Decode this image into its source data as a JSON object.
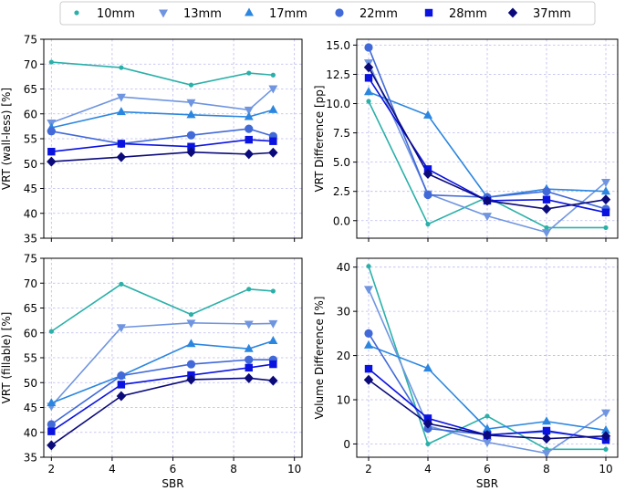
{
  "legend": {
    "placement": "top-center",
    "entries": [
      {
        "name": "10mm",
        "color": "#2ab0a8",
        "marker": "circle-small"
      },
      {
        "name": "13mm",
        "color": "#6f95e0",
        "marker": "triangle-down"
      },
      {
        "name": "17mm",
        "color": "#2b86e0",
        "marker": "triangle-up"
      },
      {
        "name": "22mm",
        "color": "#4169d8",
        "marker": "circle"
      },
      {
        "name": "28mm",
        "color": "#0a12e0",
        "marker": "square"
      },
      {
        "name": "37mm",
        "color": "#0b0a7a",
        "marker": "diamond"
      }
    ]
  },
  "chart_data": [
    {
      "type": "line",
      "title": "",
      "xlabel": "",
      "ylabel": "VRT (wall-less) [%]",
      "xlim": [
        1.75,
        10.25
      ],
      "ylim": [
        35,
        75
      ],
      "xticks": [
        2,
        4,
        6,
        8,
        10
      ],
      "yticks": [
        35,
        40,
        45,
        50,
        55,
        60,
        65,
        70,
        75
      ],
      "show_xticklabels": false,
      "grid": true,
      "series": [
        {
          "name": "10mm",
          "x": [
            2,
            4.3,
            6.6,
            8.5,
            9.3
          ],
          "y": [
            70.4,
            69.3,
            65.8,
            68.2,
            67.8
          ]
        },
        {
          "name": "13mm",
          "x": [
            2,
            4.3,
            6.6,
            8.5,
            9.3
          ],
          "y": [
            58.2,
            63.4,
            62.3,
            60.8,
            65.1
          ]
        },
        {
          "name": "17mm",
          "x": [
            2,
            4.3,
            6.6,
            8.5,
            9.3
          ],
          "y": [
            57.2,
            60.4,
            59.8,
            59.4,
            60.8
          ]
        },
        {
          "name": "22mm",
          "x": [
            2,
            4.3,
            6.6,
            8.5,
            9.3
          ],
          "y": [
            56.5,
            54.0,
            55.7,
            57.0,
            55.5
          ]
        },
        {
          "name": "28mm",
          "x": [
            2,
            4.3,
            6.6,
            8.5,
            9.3
          ],
          "y": [
            52.4,
            54.0,
            53.4,
            54.8,
            54.5
          ]
        },
        {
          "name": "37mm",
          "x": [
            2,
            4.3,
            6.6,
            8.5,
            9.3
          ],
          "y": [
            50.4,
            51.3,
            52.3,
            51.9,
            52.2
          ]
        }
      ]
    },
    {
      "type": "line",
      "title": "",
      "xlabel": "",
      "ylabel": "VRT Difference [pp]",
      "xlim": [
        1.6,
        10.4
      ],
      "ylim": [
        -1.5,
        15.5
      ],
      "xticks": [
        2,
        4,
        6,
        8,
        10
      ],
      "yticks": [
        0.0,
        2.5,
        5.0,
        7.5,
        10.0,
        12.5,
        15.0
      ],
      "ytick_labels": [
        "0.0",
        "2.5",
        "5.0",
        "7.5",
        "10.0",
        "12.5",
        "15.0"
      ],
      "show_xticklabels": false,
      "grid": true,
      "series": [
        {
          "name": "10mm",
          "x": [
            2,
            4,
            6,
            8,
            10
          ],
          "y": [
            10.2,
            -0.3,
            2.0,
            -0.6,
            -0.6
          ]
        },
        {
          "name": "13mm",
          "x": [
            2,
            4,
            6,
            8,
            10
          ],
          "y": [
            13.5,
            2.3,
            0.4,
            -1.0,
            3.3
          ]
        },
        {
          "name": "17mm",
          "x": [
            2,
            4,
            6,
            8,
            10
          ],
          "y": [
            11.0,
            9.0,
            2.0,
            2.7,
            2.5
          ]
        },
        {
          "name": "22mm",
          "x": [
            2,
            4,
            6,
            8,
            10
          ],
          "y": [
            14.8,
            2.2,
            2.0,
            2.5,
            1.0
          ]
        },
        {
          "name": "28mm",
          "x": [
            2,
            4,
            6,
            8,
            10
          ],
          "y": [
            12.2,
            4.4,
            1.7,
            1.8,
            0.7
          ]
        },
        {
          "name": "37mm",
          "x": [
            2,
            4,
            6,
            8,
            10
          ],
          "y": [
            13.1,
            4.0,
            1.7,
            1.0,
            1.8
          ]
        }
      ]
    },
    {
      "type": "line",
      "title": "",
      "xlabel": "SBR",
      "ylabel": "VRT (fillable) [%]",
      "xlim": [
        1.75,
        10.25
      ],
      "ylim": [
        35,
        75
      ],
      "xticks": [
        2,
        4,
        6,
        8,
        10
      ],
      "yticks": [
        35,
        40,
        45,
        50,
        55,
        60,
        65,
        70,
        75
      ],
      "show_xticklabels": true,
      "grid": true,
      "series": [
        {
          "name": "10mm",
          "x": [
            2,
            4.3,
            6.6,
            8.5,
            9.3
          ],
          "y": [
            60.3,
            69.8,
            63.7,
            68.8,
            68.4
          ]
        },
        {
          "name": "13mm",
          "x": [
            2,
            4.3,
            6.6,
            8.5,
            9.3
          ],
          "y": [
            45.3,
            61.1,
            62.0,
            61.8,
            61.9
          ]
        },
        {
          "name": "17mm",
          "x": [
            2,
            4.3,
            6.6,
            8.5,
            9.3
          ],
          "y": [
            45.9,
            51.4,
            57.8,
            56.8,
            58.4
          ]
        },
        {
          "name": "22mm",
          "x": [
            2,
            4.3,
            6.6,
            8.5,
            9.3
          ],
          "y": [
            41.6,
            51.4,
            53.7,
            54.6,
            54.6
          ]
        },
        {
          "name": "28mm",
          "x": [
            2,
            4.3,
            6.6,
            8.5,
            9.3
          ],
          "y": [
            40.2,
            49.6,
            51.5,
            53.0,
            53.7
          ]
        },
        {
          "name": "37mm",
          "x": [
            2,
            4.3,
            6.6,
            8.5,
            9.3
          ],
          "y": [
            37.4,
            47.3,
            50.6,
            50.9,
            50.4
          ]
        }
      ]
    },
    {
      "type": "line",
      "title": "",
      "xlabel": "SBR",
      "ylabel": "Volume Difference [%]",
      "xlim": [
        1.6,
        10.4
      ],
      "ylim": [
        -3,
        42
      ],
      "xticks": [
        2,
        4,
        6,
        8,
        10
      ],
      "yticks": [
        0,
        10,
        20,
        30,
        40
      ],
      "show_xticklabels": true,
      "grid": true,
      "series": [
        {
          "name": "10mm",
          "x": [
            2,
            4,
            6,
            8,
            10
          ],
          "y": [
            40.2,
            0.0,
            6.3,
            -1.2,
            -1.2
          ]
        },
        {
          "name": "13mm",
          "x": [
            2,
            4,
            6,
            8,
            10
          ],
          "y": [
            35.0,
            4.1,
            0.4,
            -2.1,
            7.1
          ]
        },
        {
          "name": "17mm",
          "x": [
            2,
            4,
            6,
            8,
            10
          ],
          "y": [
            22.3,
            17.1,
            3.4,
            5.1,
            3.1
          ]
        },
        {
          "name": "22mm",
          "x": [
            2,
            4,
            6,
            8,
            10
          ],
          "y": [
            25.0,
            3.5,
            2.1,
            2.8,
            1.1
          ]
        },
        {
          "name": "28mm",
          "x": [
            2,
            4,
            6,
            8,
            10
          ],
          "y": [
            17.0,
            5.8,
            2.0,
            3.0,
            0.9
          ]
        },
        {
          "name": "37mm",
          "x": [
            2,
            4,
            6,
            8,
            10
          ],
          "y": [
            14.5,
            4.6,
            2.0,
            1.2,
            1.8
          ]
        }
      ]
    }
  ]
}
